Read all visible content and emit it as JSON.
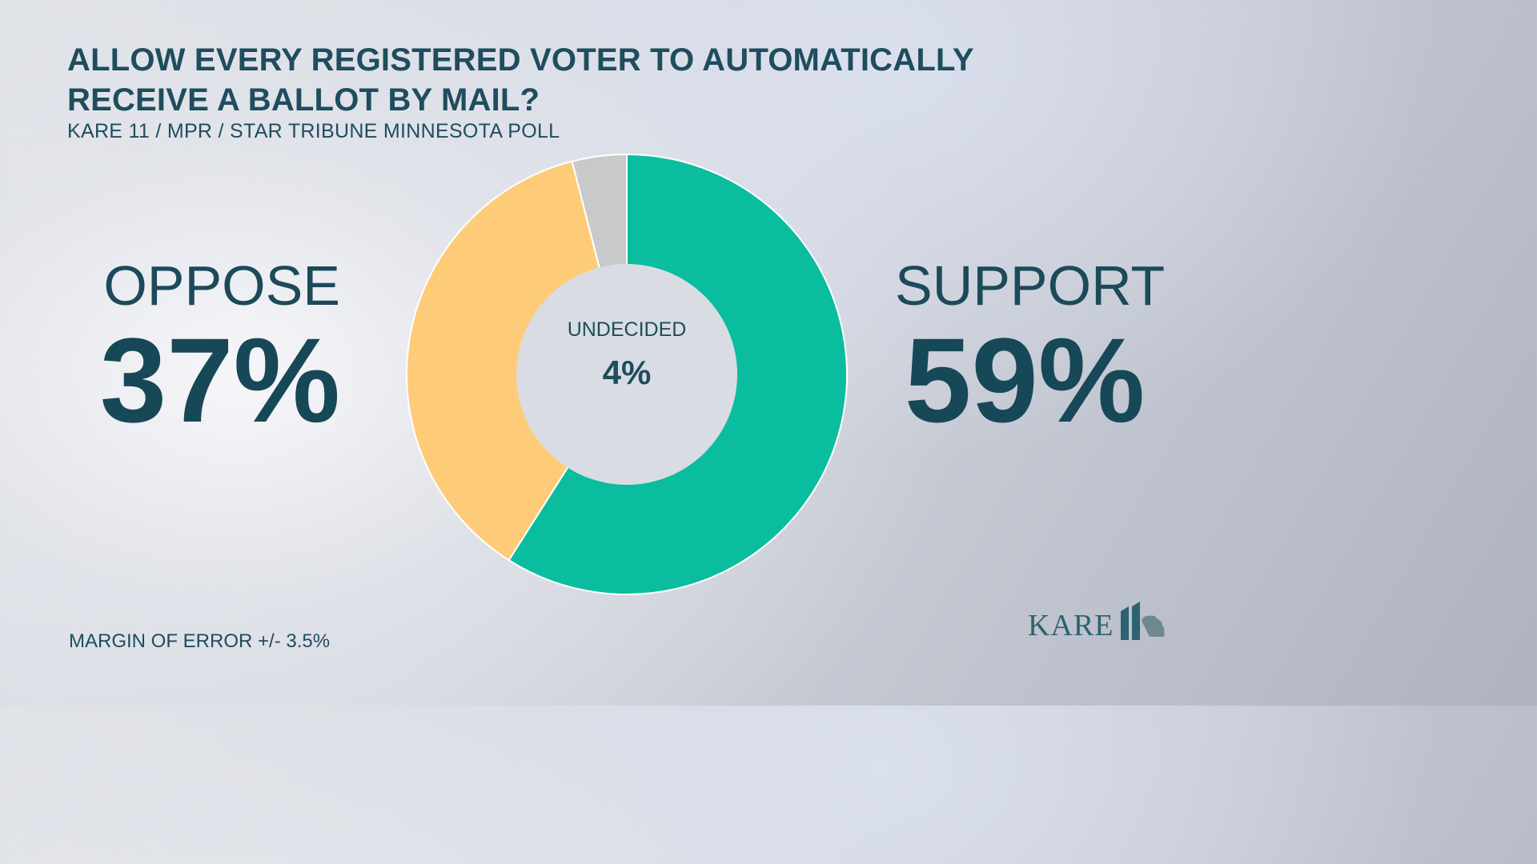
{
  "title_lines": [
    "ALLOW EVERY REGISTERED VOTER TO AUTOMATICALLY",
    "RECEIVE A BALLOT BY MAIL?"
  ],
  "subtitle": "KARE 11 / MPR / STAR TRIBUNE MINNESOTA POLL",
  "footnote": "MARGIN OF ERROR +/- 3.5%",
  "logo": {
    "text": "KARE",
    "mark": "11"
  },
  "colors": {
    "support": "#0bbd9f",
    "oppose": "#fecb78",
    "undecided": "#c8c9cb",
    "text": "#1e4d5e"
  },
  "chart_data": {
    "type": "pie",
    "style": "donut",
    "title": "ALLOW EVERY REGISTERED VOTER TO AUTOMATICALLY RECEIVE A BALLOT BY MAIL?",
    "slices": [
      {
        "label": "SUPPORT",
        "value": 59,
        "display": "59%"
      },
      {
        "label": "OPPOSE",
        "value": 37,
        "display": "37%"
      },
      {
        "label": "UNDECIDED",
        "value": 4,
        "display": "4%"
      }
    ]
  }
}
